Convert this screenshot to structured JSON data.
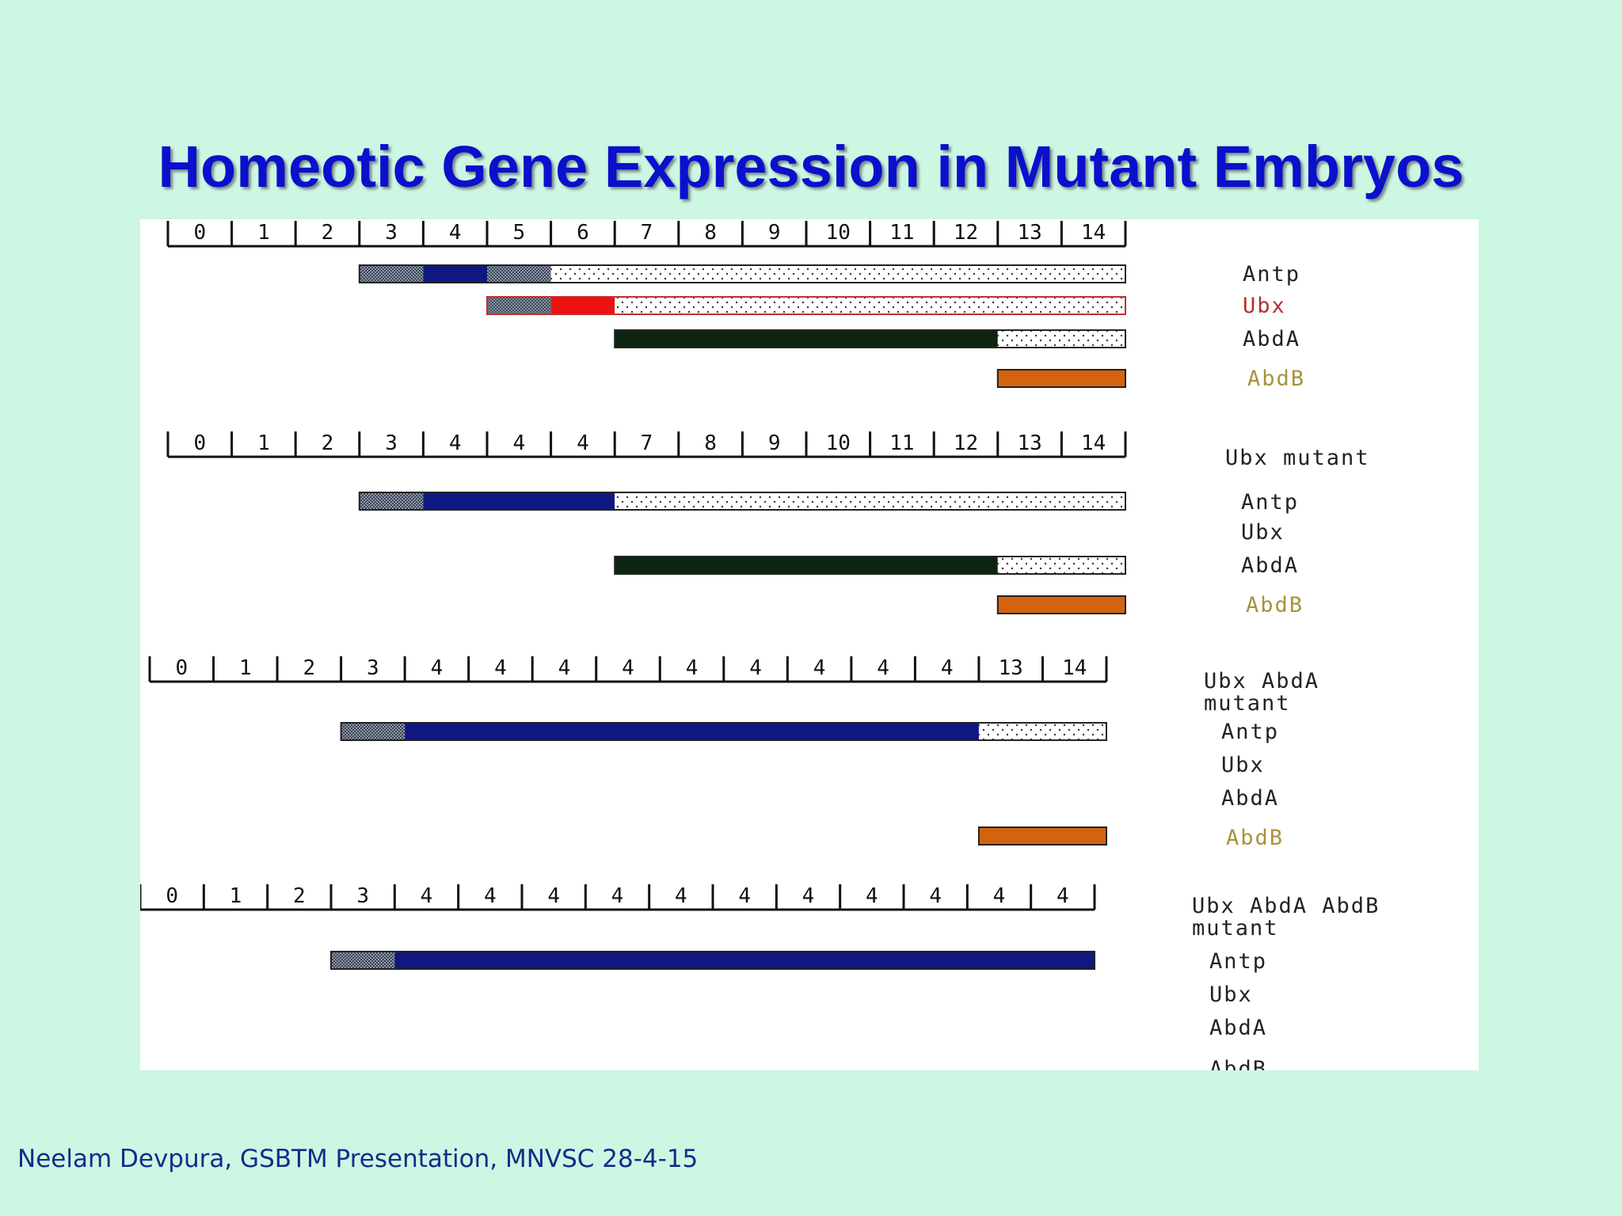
{
  "title": "Homeotic Gene Expression in Mutant Embryos",
  "footer": "Neelam Devpura, GSBTM Presentation, MNVSC 28-4-15",
  "colors": {
    "title": "#0a10cc",
    "background": "#ccf7e2",
    "Antp": "#0f1880",
    "Ubx": "#ee1111",
    "AbdA": "#0c2410",
    "AbdB": "#d5620f",
    "hatch": "#556070",
    "label_default": "#222222",
    "label_ubx": "#b03030",
    "label_abdb": "#a8923a"
  },
  "panels": [
    {
      "id": "wild-type",
      "header": "",
      "segments": [
        "0",
        "1",
        "2",
        "3",
        "4",
        "5",
        "6",
        "7",
        "8",
        "9",
        "10",
        "11",
        "12",
        "13",
        "14"
      ],
      "labels": [
        "Antp",
        "Ubx",
        "AbdA",
        "AbdB"
      ],
      "bars": [
        {
          "gene": "Antp",
          "hatch": [
            3,
            4
          ],
          "solid": [
            4,
            5
          ],
          "hatch2": [
            5,
            6
          ],
          "dotted": [
            6,
            15
          ]
        },
        {
          "gene": "Ubx",
          "hatch": [
            5,
            6
          ],
          "solid": [
            6,
            7
          ],
          "dotted": [
            7,
            15
          ]
        },
        {
          "gene": "AbdA",
          "solid": [
            7,
            13
          ],
          "dotted": [
            13,
            15
          ]
        },
        {
          "gene": "AbdB",
          "solid": [
            13,
            15
          ]
        }
      ]
    },
    {
      "id": "ubx-mutant",
      "header": "Ubx mutant",
      "segments": [
        "0",
        "1",
        "2",
        "3",
        "4",
        "4",
        "4",
        "7",
        "8",
        "9",
        "10",
        "11",
        "12",
        "13",
        "14"
      ],
      "labels": [
        "Antp",
        "Ubx",
        "AbdA",
        "AbdB"
      ],
      "bars": [
        {
          "gene": "Antp",
          "hatch": [
            3,
            4
          ],
          "solid": [
            4,
            7
          ],
          "dotted": [
            7,
            15
          ]
        },
        {
          "gene": "AbdA",
          "solid": [
            7,
            13
          ],
          "dotted": [
            13,
            15
          ]
        },
        {
          "gene": "AbdB",
          "solid": [
            13,
            15
          ]
        }
      ]
    },
    {
      "id": "ubx-abda-mutant",
      "header": "Ubx AbdA\nmutant",
      "segments": [
        "0",
        "1",
        "2",
        "3",
        "4",
        "4",
        "4",
        "4",
        "4",
        "4",
        "4",
        "4",
        "4",
        "13",
        "14"
      ],
      "labels": [
        "Antp",
        "Ubx",
        "AbdA",
        "AbdB"
      ],
      "bars": [
        {
          "gene": "Antp",
          "hatch": [
            3,
            4
          ],
          "solid": [
            4,
            13
          ],
          "dotted": [
            13,
            15
          ]
        },
        {
          "gene": "AbdB",
          "solid": [
            13,
            15
          ]
        }
      ]
    },
    {
      "id": "ubx-abda-abdb-mutant",
      "header": "Ubx AbdA AbdB\nmutant",
      "segments": [
        "0",
        "1",
        "2",
        "3",
        "4",
        "4",
        "4",
        "4",
        "4",
        "4",
        "4",
        "4",
        "4",
        "4",
        "4"
      ],
      "labels": [
        "Antp",
        "Ubx",
        "AbdA",
        "AbdB"
      ],
      "bars": [
        {
          "gene": "Antp",
          "hatch": [
            3,
            4
          ],
          "solid": [
            4,
            15
          ]
        }
      ]
    }
  ]
}
